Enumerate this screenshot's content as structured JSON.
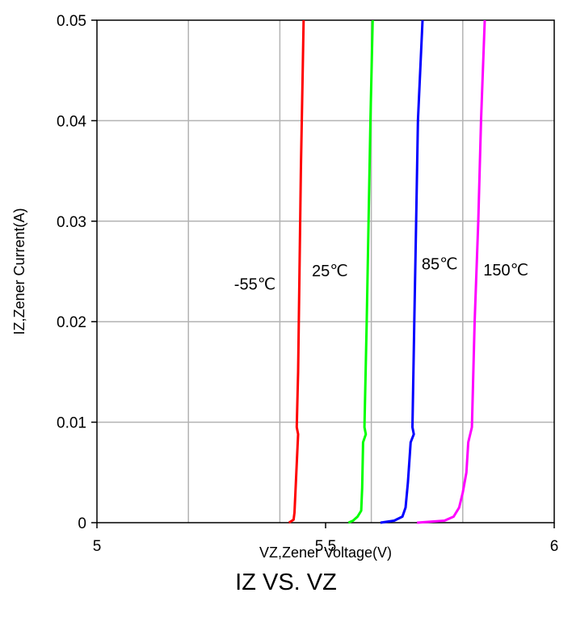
{
  "chart_data": {
    "type": "line",
    "title": "",
    "xlabel": "VZ,Zener Voltage(V)",
    "ylabel": "IZ,Zener Current(A)",
    "xlim": [
      5,
      6
    ],
    "ylim": [
      0,
      0.05
    ],
    "x_ticks": [
      5,
      5.5,
      6
    ],
    "x_tick_labels": [
      "5",
      "5.5",
      "6"
    ],
    "x_minor_gridlines": [
      5.2,
      5.4,
      5.6,
      5.8
    ],
    "y_ticks": [
      0,
      0.01,
      0.02,
      0.03,
      0.04,
      0.05
    ],
    "y_tick_labels": [
      "0",
      "0.01",
      "0.02",
      "0.03",
      "0.04",
      "0.05"
    ],
    "grid": true,
    "series": [
      {
        "name": "-55℃",
        "color": "#ff0000",
        "points": [
          [
            5.42,
            0
          ],
          [
            5.43,
            0.0003
          ],
          [
            5.432,
            0.001
          ],
          [
            5.436,
            0.005
          ],
          [
            5.44,
            0.0088
          ],
          [
            5.437,
            0.0095
          ],
          [
            5.44,
            0.015
          ],
          [
            5.443,
            0.025
          ],
          [
            5.446,
            0.035
          ],
          [
            5.45,
            0.045
          ],
          [
            5.452,
            0.05
          ]
        ]
      },
      {
        "name": "25℃",
        "color": "#00ff00",
        "points": [
          [
            5.55,
            0
          ],
          [
            5.56,
            0.0002
          ],
          [
            5.57,
            0.0006
          ],
          [
            5.578,
            0.0012
          ],
          [
            5.58,
            0.0035
          ],
          [
            5.582,
            0.008
          ],
          [
            5.588,
            0.0088
          ],
          [
            5.585,
            0.0095
          ],
          [
            5.59,
            0.02
          ],
          [
            5.594,
            0.03
          ],
          [
            5.598,
            0.04
          ],
          [
            5.603,
            0.05
          ]
        ]
      },
      {
        "name": "85℃",
        "color": "#0000ff",
        "points": [
          [
            5.62,
            0
          ],
          [
            5.65,
            0.0002
          ],
          [
            5.668,
            0.0006
          ],
          [
            5.675,
            0.0015
          ],
          [
            5.68,
            0.004
          ],
          [
            5.686,
            0.008
          ],
          [
            5.693,
            0.0088
          ],
          [
            5.69,
            0.0095
          ],
          [
            5.694,
            0.02
          ],
          [
            5.698,
            0.03
          ],
          [
            5.702,
            0.04
          ],
          [
            5.712,
            0.05
          ]
        ]
      },
      {
        "name": "150℃",
        "color": "#ff00ff",
        "points": [
          [
            5.7,
            0
          ],
          [
            5.76,
            0.0002
          ],
          [
            5.78,
            0.0006
          ],
          [
            5.792,
            0.0015
          ],
          [
            5.8,
            0.003
          ],
          [
            5.808,
            0.005
          ],
          [
            5.812,
            0.008
          ],
          [
            5.82,
            0.0095
          ],
          [
            5.826,
            0.02
          ],
          [
            5.834,
            0.03
          ],
          [
            5.84,
            0.04
          ],
          [
            5.848,
            0.05
          ]
        ]
      }
    ],
    "annotations": [
      {
        "text": "-55℃",
        "x": 5.3,
        "y": 0.0232
      },
      {
        "text": "25℃",
        "x": 5.47,
        "y": 0.0245
      },
      {
        "text": "85℃",
        "x": 5.71,
        "y": 0.0252
      },
      {
        "text": "150℃",
        "x": 5.845,
        "y": 0.0246
      }
    ]
  },
  "caption": "IZ VS. VZ"
}
